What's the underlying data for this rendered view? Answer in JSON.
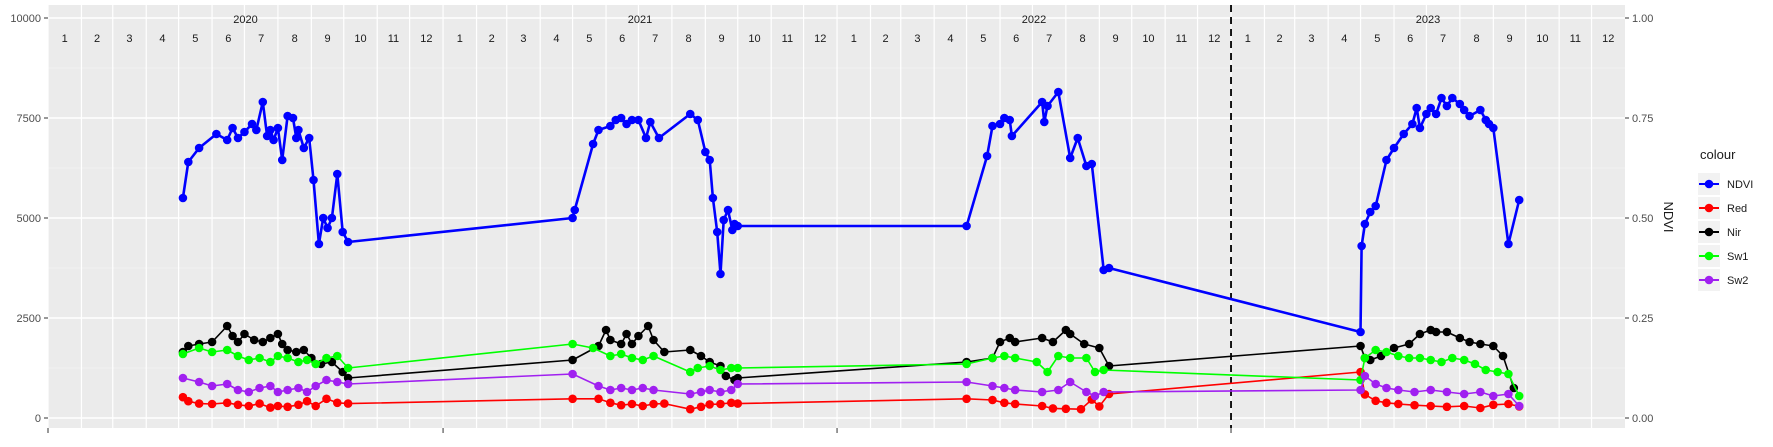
{
  "chart_data": {
    "type": "line",
    "title": "",
    "xlabel": "",
    "ylabel_left": "",
    "ylabel_right": "NDVI",
    "ylim_left": [
      0,
      10000
    ],
    "ylim_right": [
      0,
      1
    ],
    "yticks_left": [
      "0",
      "2500",
      "5000",
      "7500",
      "10000"
    ],
    "yticks_right": [
      "0.00",
      "0.25",
      "0.50",
      "0.75",
      "1.00"
    ],
    "years": [
      "2020",
      "2021",
      "2022",
      "2023"
    ],
    "month_labels": [
      "1",
      "2",
      "3",
      "4",
      "5",
      "6",
      "7",
      "8",
      "9",
      "10",
      "11",
      "12"
    ],
    "grid": true,
    "vline_at": "2023-01-01",
    "legend": {
      "title": "colour",
      "placement": "right",
      "entries": [
        "NDVI",
        "Red",
        "Nir",
        "Sw1",
        "Sw2"
      ]
    },
    "series": [
      {
        "name": "NDVI",
        "color": "#0000ff",
        "axis": "right",
        "x": [
          "2020-05-05",
          "2020-05-10",
          "2020-05-20",
          "2020-06-05",
          "2020-06-15",
          "2020-06-20",
          "2020-06-25",
          "2020-07-01",
          "2020-07-08",
          "2020-07-12",
          "2020-07-18",
          "2020-07-22",
          "2020-07-25",
          "2020-07-28",
          "2020-08-01",
          "2020-08-05",
          "2020-08-10",
          "2020-08-15",
          "2020-08-18",
          "2020-08-20",
          "2020-08-25",
          "2020-08-30",
          "2020-09-03",
          "2020-09-08",
          "2020-09-12",
          "2020-09-16",
          "2020-09-20",
          "2020-09-25",
          "2020-09-30",
          "2020-10-05",
          "2021-05-01",
          "2021-05-03",
          "2021-05-20",
          "2021-05-25",
          "2021-06-05",
          "2021-06-10",
          "2021-06-15",
          "2021-06-20",
          "2021-06-25",
          "2021-07-01",
          "2021-07-08",
          "2021-07-12",
          "2021-07-20",
          "2021-08-18",
          "2021-08-25",
          "2021-09-01",
          "2021-09-05",
          "2021-09-08",
          "2021-09-12",
          "2021-09-15",
          "2021-09-18",
          "2021-09-22",
          "2021-09-26",
          "2021-09-28",
          "2021-10-01",
          "2022-05-01",
          "2022-05-20",
          "2022-05-25",
          "2022-06-01",
          "2022-06-05",
          "2022-06-10",
          "2022-06-12",
          "2022-07-10",
          "2022-07-12",
          "2022-07-15",
          "2022-07-25",
          "2022-08-05",
          "2022-08-12",
          "2022-08-20",
          "2022-08-25",
          "2022-09-05",
          "2022-09-10",
          "2023-05-01",
          "2023-05-02",
          "2023-05-05",
          "2023-05-10",
          "2023-05-15",
          "2023-05-25",
          "2023-06-01",
          "2023-06-10",
          "2023-06-18",
          "2023-06-22",
          "2023-06-25",
          "2023-07-01",
          "2023-07-05",
          "2023-07-10",
          "2023-07-15",
          "2023-07-20",
          "2023-07-25",
          "2023-08-01",
          "2023-08-05",
          "2023-08-10",
          "2023-08-20",
          "2023-08-25",
          "2023-08-28",
          "2023-09-01",
          "2023-09-15",
          "2023-09-25"
        ],
        "values": [
          0.55,
          0.64,
          0.675,
          0.71,
          0.695,
          0.725,
          0.7,
          0.715,
          0.735,
          0.72,
          0.79,
          0.705,
          0.72,
          0.695,
          0.725,
          0.645,
          0.755,
          0.75,
          0.7,
          0.72,
          0.675,
          0.7,
          0.595,
          0.435,
          0.5,
          0.475,
          0.5,
          0.61,
          0.465,
          0.44,
          0.5,
          0.52,
          0.685,
          0.72,
          0.73,
          0.745,
          0.75,
          0.735,
          0.745,
          0.745,
          0.7,
          0.74,
          0.7,
          0.76,
          0.745,
          0.665,
          0.645,
          0.55,
          0.465,
          0.36,
          0.495,
          0.52,
          0.47,
          0.485,
          0.48,
          0.48,
          0.655,
          0.73,
          0.735,
          0.75,
          0.745,
          0.705,
          0.79,
          0.74,
          0.78,
          0.815,
          0.65,
          0.7,
          0.63,
          0.635,
          0.37,
          0.375,
          0.215,
          0.43,
          0.485,
          0.515,
          0.53,
          0.645,
          0.675,
          0.71,
          0.735,
          0.775,
          0.725,
          0.76,
          0.775,
          0.76,
          0.8,
          0.78,
          0.8,
          0.785,
          0.77,
          0.755,
          0.77,
          0.745,
          0.735,
          0.725,
          0.435,
          0.545
        ]
      },
      {
        "name": "Red",
        "color": "#ff0000",
        "axis": "left",
        "x": [
          "2020-05-05",
          "2020-05-10",
          "2020-05-20",
          "2020-06-01",
          "2020-06-15",
          "2020-06-25",
          "2020-07-05",
          "2020-07-15",
          "2020-07-25",
          "2020-08-01",
          "2020-08-10",
          "2020-08-20",
          "2020-08-28",
          "2020-09-05",
          "2020-09-15",
          "2020-09-25",
          "2020-10-05",
          "2021-05-01",
          "2021-05-25",
          "2021-06-05",
          "2021-06-15",
          "2021-06-25",
          "2021-07-05",
          "2021-07-15",
          "2021-07-25",
          "2021-08-18",
          "2021-08-28",
          "2021-09-05",
          "2021-09-15",
          "2021-09-25",
          "2021-10-01",
          "2022-05-01",
          "2022-05-25",
          "2022-06-05",
          "2022-06-15",
          "2022-07-10",
          "2022-07-20",
          "2022-08-01",
          "2022-08-15",
          "2022-08-25",
          "2022-09-01",
          "2022-09-10",
          "2023-05-01",
          "2023-05-05",
          "2023-05-15",
          "2023-05-25",
          "2023-06-05",
          "2023-06-20",
          "2023-07-05",
          "2023-07-20",
          "2023-08-05",
          "2023-08-20",
          "2023-09-01",
          "2023-09-15",
          "2023-09-25"
        ],
        "values": [
          520,
          420,
          360,
          350,
          380,
          330,
          300,
          360,
          260,
          300,
          280,
          330,
          420,
          300,
          480,
          380,
          360,
          480,
          480,
          380,
          320,
          350,
          300,
          350,
          360,
          220,
          280,
          340,
          350,
          380,
          360,
          480,
          450,
          380,
          350,
          300,
          240,
          230,
          220,
          460,
          290,
          600,
          1150,
          590,
          430,
          380,
          350,
          320,
          300,
          280,
          300,
          250,
          330,
          350,
          290
        ]
      },
      {
        "name": "Nir",
        "color": "#000000",
        "axis": "left",
        "x": [
          "2020-05-05",
          "2020-05-10",
          "2020-05-20",
          "2020-06-01",
          "2020-06-15",
          "2020-06-20",
          "2020-06-25",
          "2020-07-01",
          "2020-07-10",
          "2020-07-18",
          "2020-07-25",
          "2020-08-01",
          "2020-08-05",
          "2020-08-10",
          "2020-08-18",
          "2020-08-25",
          "2020-09-01",
          "2020-09-10",
          "2020-09-20",
          "2020-09-30",
          "2020-10-05",
          "2021-05-01",
          "2021-05-25",
          "2021-06-01",
          "2021-06-05",
          "2021-06-15",
          "2021-06-20",
          "2021-06-25",
          "2021-07-01",
          "2021-07-10",
          "2021-07-15",
          "2021-07-25",
          "2021-08-18",
          "2021-08-28",
          "2021-09-05",
          "2021-09-15",
          "2021-09-20",
          "2021-09-28",
          "2021-10-01",
          "2022-05-01",
          "2022-05-25",
          "2022-06-01",
          "2022-06-10",
          "2022-06-15",
          "2022-07-10",
          "2022-07-20",
          "2022-08-01",
          "2022-08-05",
          "2022-08-18",
          "2022-09-01",
          "2022-09-10",
          "2023-05-01",
          "2023-05-05",
          "2023-05-10",
          "2023-05-20",
          "2023-06-01",
          "2023-06-15",
          "2023-06-25",
          "2023-07-05",
          "2023-07-10",
          "2023-07-20",
          "2023-08-01",
          "2023-08-10",
          "2023-08-20",
          "2023-09-01",
          "2023-09-10",
          "2023-09-20"
        ],
        "values": [
          1650,
          1800,
          1850,
          1900,
          2300,
          2050,
          1900,
          2100,
          1950,
          1900,
          2000,
          2100,
          1850,
          1700,
          1650,
          1700,
          1500,
          1350,
          1400,
          1150,
          1000,
          1450,
          1800,
          2200,
          1950,
          1850,
          2100,
          1850,
          2050,
          2300,
          1950,
          1650,
          1700,
          1550,
          1400,
          1300,
          1050,
          950,
          1000,
          1400,
          1500,
          1900,
          2000,
          1900,
          2000,
          1900,
          2200,
          2100,
          1850,
          1750,
          1300,
          1800,
          1500,
          1450,
          1550,
          1750,
          1850,
          2100,
          2200,
          2150,
          2150,
          2000,
          1900,
          1850,
          1800,
          1550,
          750
        ]
      },
      {
        "name": "Sw1",
        "color": "#00ff00",
        "axis": "left",
        "x": [
          "2020-05-05",
          "2020-05-20",
          "2020-06-01",
          "2020-06-15",
          "2020-06-25",
          "2020-07-05",
          "2020-07-15",
          "2020-07-25",
          "2020-08-01",
          "2020-08-10",
          "2020-08-20",
          "2020-08-28",
          "2020-09-05",
          "2020-09-15",
          "2020-09-25",
          "2020-10-05",
          "2021-05-01",
          "2021-05-20",
          "2021-06-05",
          "2021-06-15",
          "2021-06-25",
          "2021-07-05",
          "2021-07-15",
          "2021-08-18",
          "2021-08-25",
          "2021-09-05",
          "2021-09-15",
          "2021-09-25",
          "2021-10-01",
          "2022-05-01",
          "2022-05-25",
          "2022-06-05",
          "2022-06-15",
          "2022-07-05",
          "2022-07-15",
          "2022-07-25",
          "2022-08-05",
          "2022-08-20",
          "2022-08-28",
          "2022-09-05",
          "2023-05-01",
          "2023-05-05",
          "2023-05-15",
          "2023-05-25",
          "2023-06-05",
          "2023-06-15",
          "2023-06-25",
          "2023-07-05",
          "2023-07-15",
          "2023-07-25",
          "2023-08-05",
          "2023-08-15",
          "2023-08-25",
          "2023-09-05",
          "2023-09-15",
          "2023-09-25"
        ],
        "values": [
          1600,
          1750,
          1650,
          1700,
          1550,
          1450,
          1500,
          1400,
          1550,
          1500,
          1400,
          1450,
          1350,
          1500,
          1550,
          1250,
          1850,
          1750,
          1550,
          1600,
          1500,
          1450,
          1550,
          1150,
          1250,
          1300,
          1200,
          1250,
          1250,
          1350,
          1500,
          1550,
          1500,
          1400,
          1150,
          1550,
          1500,
          1500,
          1150,
          1200,
          950,
          1500,
          1700,
          1650,
          1550,
          1500,
          1500,
          1450,
          1400,
          1500,
          1450,
          1350,
          1200,
          1150,
          1100,
          550
        ]
      },
      {
        "name": "Sw2",
        "color": "#a020f0",
        "axis": "left",
        "x": [
          "2020-05-05",
          "2020-05-20",
          "2020-06-01",
          "2020-06-15",
          "2020-06-25",
          "2020-07-05",
          "2020-07-15",
          "2020-07-25",
          "2020-08-01",
          "2020-08-10",
          "2020-08-20",
          "2020-08-28",
          "2020-09-05",
          "2020-09-15",
          "2020-09-25",
          "2020-10-05",
          "2021-05-01",
          "2021-05-25",
          "2021-06-05",
          "2021-06-15",
          "2021-06-25",
          "2021-07-05",
          "2021-07-15",
          "2021-08-18",
          "2021-08-28",
          "2021-09-05",
          "2021-09-15",
          "2021-09-25",
          "2021-10-01",
          "2022-05-01",
          "2022-05-25",
          "2022-06-05",
          "2022-06-15",
          "2022-07-10",
          "2022-07-25",
          "2022-08-05",
          "2022-08-20",
          "2022-08-28",
          "2022-09-05",
          "2023-05-01",
          "2023-05-05",
          "2023-05-15",
          "2023-05-25",
          "2023-06-05",
          "2023-06-20",
          "2023-07-05",
          "2023-07-20",
          "2023-08-05",
          "2023-08-20",
          "2023-09-01",
          "2023-09-15",
          "2023-09-25"
        ],
        "values": [
          1000,
          900,
          800,
          850,
          700,
          650,
          750,
          800,
          650,
          700,
          750,
          650,
          800,
          950,
          900,
          850,
          1100,
          800,
          700,
          750,
          700,
          750,
          700,
          600,
          650,
          700,
          650,
          700,
          850,
          900,
          800,
          750,
          700,
          650,
          700,
          900,
          650,
          550,
          650,
          700,
          1050,
          850,
          750,
          700,
          650,
          700,
          650,
          600,
          650,
          550,
          600,
          300
        ]
      }
    ]
  }
}
